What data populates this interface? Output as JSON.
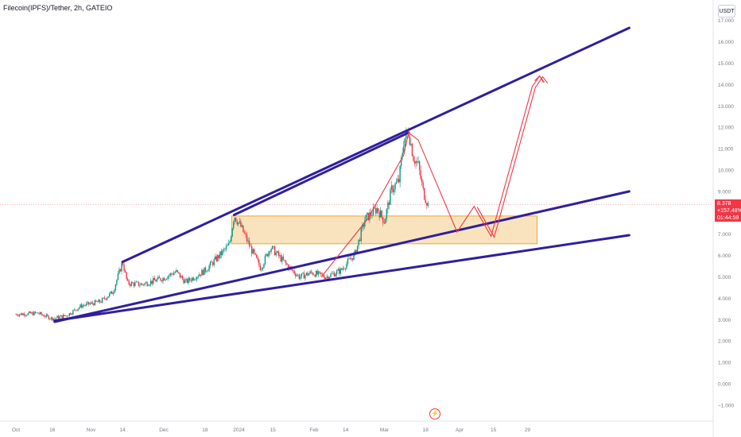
{
  "header": {
    "symbol": "Filecoin(IPFS)/Tether, 2h, GATEIO",
    "currency": "USDT"
  },
  "price_tag": {
    "price": "8.378",
    "change": "+157.48%",
    "countdown": "01:44:59"
  },
  "colors": {
    "trendline": "#2e1f9e",
    "projection": "#f23645",
    "zone_fill": "#f5d9a8",
    "zone_border": "#f5a623",
    "candle_up": "#089981",
    "candle_down": "#f23645",
    "axis_text": "#787b86"
  },
  "icons": {
    "event": "flash-icon"
  },
  "chart_data": {
    "type": "candlestick",
    "title": "Filecoin(IPFS)/Tether, 2h, GATEIO",
    "y_ticks": [
      "17.000",
      "16.000",
      "15.000",
      "14.000",
      "13.000",
      "12.000",
      "11.000",
      "10.000",
      "9.000",
      "8.000",
      "7.000",
      "6.000",
      "5.000",
      "4.000",
      "3.000",
      "2.000",
      "1.000",
      "0.000",
      "−1.000"
    ],
    "x_ticks": [
      "Oct",
      "16",
      "Nov",
      "14",
      "Dec",
      "18",
      "2024",
      "15",
      "Feb",
      "14",
      "Mar",
      "18",
      "Apr",
      "15",
      "29"
    ],
    "ylim": [
      -1.4,
      17.4
    ],
    "price_path": [
      [
        "2023-10-01",
        3.25
      ],
      [
        "2023-10-10",
        3.3
      ],
      [
        "2023-10-16",
        3.05
      ],
      [
        "2023-10-22",
        3.2
      ],
      [
        "2023-10-28",
        3.65
      ],
      [
        "2023-11-05",
        3.85
      ],
      [
        "2023-11-10",
        4.3
      ],
      [
        "2023-11-14",
        5.7
      ],
      [
        "2023-11-16",
        4.7
      ],
      [
        "2023-11-22",
        4.65
      ],
      [
        "2023-12-01",
        4.95
      ],
      [
        "2023-12-06",
        5.25
      ],
      [
        "2023-12-10",
        4.75
      ],
      [
        "2023-12-18",
        5.3
      ],
      [
        "2023-12-24",
        6.0
      ],
      [
        "2023-12-28",
        6.5
      ],
      [
        "2023-12-30",
        7.9
      ],
      [
        "2024-01-02",
        7.3
      ],
      [
        "2024-01-06",
        6.3
      ],
      [
        "2024-01-10",
        5.4
      ],
      [
        "2024-01-14",
        6.4
      ],
      [
        "2024-01-18",
        5.9
      ],
      [
        "2024-01-22",
        5.4
      ],
      [
        "2024-01-26",
        5.0
      ],
      [
        "2024-01-31",
        5.2
      ],
      [
        "2024-02-06",
        5.0
      ],
      [
        "2024-02-12",
        5.3
      ],
      [
        "2024-02-18",
        6.1
      ],
      [
        "2024-02-22",
        7.7
      ],
      [
        "2024-02-27",
        8.2
      ],
      [
        "2024-03-01",
        7.6
      ],
      [
        "2024-03-04",
        9.1
      ],
      [
        "2024-03-07",
        9.5
      ],
      [
        "2024-03-09",
        11.4
      ],
      [
        "2024-03-11",
        11.8
      ],
      [
        "2024-03-13",
        10.6
      ],
      [
        "2024-03-15",
        10.2
      ],
      [
        "2024-03-17",
        9.0
      ],
      [
        "2024-03-19",
        8.378
      ]
    ],
    "trendlines": [
      {
        "name": "upper resistance",
        "points": [
          [
            "2023-11-14",
            5.7
          ],
          [
            "2024-06-10",
            16.65
          ]
        ]
      },
      {
        "name": "middle support",
        "points": [
          [
            "2023-10-17",
            2.9
          ],
          [
            "2024-06-10",
            9.0
          ]
        ]
      },
      {
        "name": "lower support",
        "points": [
          [
            "2023-10-17",
            2.95
          ],
          [
            "2024-06-10",
            6.95
          ]
        ]
      },
      {
        "name": "top edge",
        "points": [
          [
            "2023-12-30",
            7.9
          ],
          [
            "2024-03-11",
            11.75
          ]
        ]
      }
    ],
    "zone": {
      "x": [
        "2023-12-29",
        "2024-05-03"
      ],
      "y": [
        6.55,
        7.85
      ]
    },
    "projection_path": [
      [
        "2024-02-04",
        5.0
      ],
      [
        "2024-02-23",
        7.7
      ],
      [
        "2024-03-09",
        10.7
      ],
      [
        "2024-03-11",
        11.75
      ],
      [
        "2024-03-15",
        11.4
      ],
      [
        "2024-03-31",
        7.1
      ],
      [
        "2024-04-07",
        8.3
      ],
      [
        "2024-04-14",
        6.9
      ],
      [
        "2024-05-01",
        13.9
      ],
      [
        "2024-05-04",
        14.4
      ],
      [
        "2024-05-06",
        14.1
      ]
    ],
    "last_price": 8.378
  }
}
